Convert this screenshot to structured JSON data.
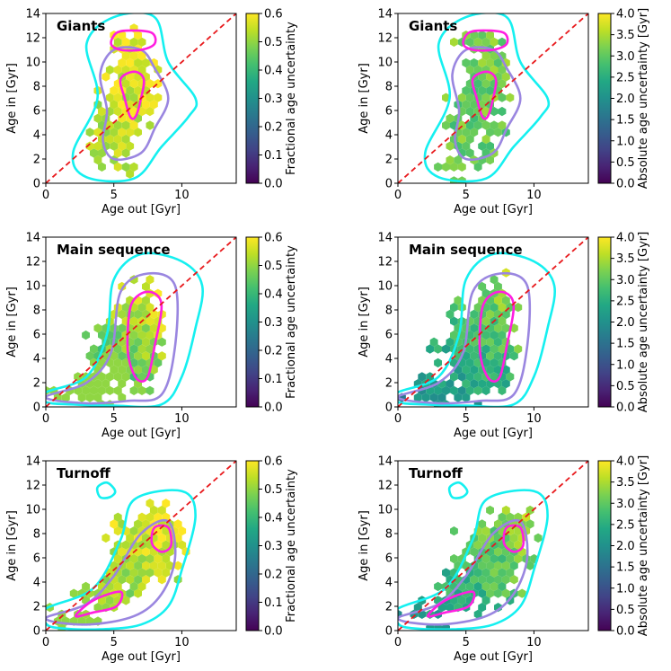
{
  "chart_data": {
    "type": "hexbin_grid",
    "x_label": "Age out [Gyr]",
    "y_label": "Age in [Gyr]",
    "xlim": [
      0,
      14
    ],
    "ylim": [
      0,
      14
    ],
    "x_ticks": [
      0,
      5,
      10
    ],
    "y_ticks": [
      0,
      2,
      4,
      6,
      8,
      10,
      12,
      14
    ],
    "one_to_one_line": {
      "color": "#e8191c",
      "style": "dashed"
    },
    "contour_colors": [
      "#15f0f0",
      "#9a86e0",
      "#ff1ee0"
    ],
    "colormap": "viridis",
    "colorbars": {
      "fractional": {
        "label": "Fractional age uncertainty",
        "range": [
          0.0,
          0.6
        ],
        "ticks": [
          "0.0",
          "0.1",
          "0.2",
          "0.3",
          "0.4",
          "0.5",
          "0.6"
        ]
      },
      "absolute": {
        "label": "Absolute age uncertainty [Gyr]",
        "range": [
          0.0,
          4.0
        ],
        "ticks": [
          "0.0",
          "0.5",
          "1.0",
          "1.5",
          "2.0",
          "2.5",
          "3.0",
          "3.5",
          "4.0"
        ]
      }
    },
    "panels": [
      {
        "row": 0,
        "col": 0,
        "title": "Giants",
        "metric": "fractional"
      },
      {
        "row": 0,
        "col": 1,
        "title": "Giants",
        "metric": "absolute"
      },
      {
        "row": 1,
        "col": 0,
        "title": "Main sequence",
        "metric": "fractional"
      },
      {
        "row": 1,
        "col": 1,
        "title": "Main sequence",
        "metric": "absolute"
      },
      {
        "row": 2,
        "col": 0,
        "title": "Turnoff",
        "metric": "fractional"
      },
      {
        "row": 2,
        "col": 1,
        "title": "Turnoff",
        "metric": "absolute"
      }
    ],
    "populations": {
      "Giants": {
        "density_centers": [
          [
            6.5,
            8.5,
            1.0,
            1.5,
            1.0
          ],
          [
            6.0,
            11.5,
            0.9,
            0.6,
            0.8
          ],
          [
            5.5,
            5.0,
            1.2,
            2.0,
            0.6
          ],
          [
            5.0,
            2.0,
            1.5,
            1.2,
            0.3
          ]
        ],
        "fractional_trend": [
          0.6,
          0.4
        ],
        "absolute_trend": [
          3.2,
          2.8
        ],
        "contours": [
          {
            "level": "outer",
            "points": [
              [
                5.0,
                13.7
              ],
              [
                3.0,
                11.5
              ],
              [
                3.8,
                7.0
              ],
              [
                2.0,
                2.5
              ],
              [
                3.0,
                0.5
              ],
              [
                6.5,
                0.4
              ],
              [
                8.5,
                3.0
              ],
              [
                10.5,
                5.5
              ],
              [
                11.0,
                7.0
              ],
              [
                9.0,
                10.0
              ],
              [
                8.0,
                13.7
              ]
            ]
          },
          {
            "level": "middle",
            "points": [
              [
                5.0,
                11.0
              ],
              [
                4.0,
                9.0
              ],
              [
                4.5,
                6.0
              ],
              [
                4.2,
                3.5
              ],
              [
                5.0,
                2.0
              ],
              [
                7.0,
                2.5
              ],
              [
                8.0,
                4.5
              ],
              [
                9.0,
                7.0
              ],
              [
                8.0,
                9.5
              ],
              [
                7.0,
                11.0
              ]
            ]
          },
          {
            "level": "inner",
            "points": [
              [
                5.5,
                8.6
              ],
              [
                5.8,
                7.0
              ],
              [
                6.2,
                5.5
              ],
              [
                6.6,
                5.5
              ],
              [
                7.0,
                7.0
              ],
              [
                7.2,
                8.6
              ],
              [
                6.5,
                9.2
              ]
            ]
          },
          {
            "level": "inner",
            "points": [
              [
                4.8,
                11.5
              ],
              [
                5.2,
                12.4
              ],
              [
                6.3,
                12.6
              ],
              [
                7.8,
                12.4
              ],
              [
                8.0,
                11.5
              ],
              [
                7.0,
                11.0
              ],
              [
                5.5,
                11.0
              ]
            ]
          }
        ]
      },
      "Main sequence": {
        "density_centers": [
          [
            7.0,
            7.0,
            1.0,
            2.0,
            1.0
          ],
          [
            6.5,
            3.5,
            1.0,
            1.5,
            0.7
          ],
          [
            3.0,
            1.2,
            1.5,
            0.8,
            0.6
          ],
          [
            5.0,
            5.0,
            1.5,
            2.0,
            0.5
          ]
        ],
        "fractional_trend": [
          0.6,
          0.2
        ],
        "absolute_trend": [
          3.5,
          0.8
        ],
        "contours": [
          {
            "level": "outer",
            "points": [
              [
                0.0,
                0.4
              ],
              [
                0.0,
                1.2
              ],
              [
                3.0,
                2.5
              ],
              [
                4.5,
                6.0
              ],
              [
                5.0,
                10.5
              ],
              [
                7.0,
                12.6
              ],
              [
                10.0,
                12.0
              ],
              [
                11.5,
                10.0
              ],
              [
                11.0,
                6.5
              ],
              [
                10.0,
                2.5
              ],
              [
                8.5,
                0.2
              ],
              [
                5.0,
                0.1
              ],
              [
                2.0,
                0.2
              ]
            ]
          },
          {
            "level": "middle",
            "points": [
              [
                0.0,
                0.8
              ],
              [
                3.0,
                2.0
              ],
              [
                4.8,
                4.5
              ],
              [
                5.5,
                9.5
              ],
              [
                7.5,
                11.0
              ],
              [
                9.5,
                10.0
              ],
              [
                9.5,
                5.0
              ],
              [
                8.5,
                1.0
              ],
              [
                6.0,
                0.5
              ],
              [
                3.0,
                0.3
              ]
            ]
          },
          {
            "level": "inner",
            "points": [
              [
                6.2,
                3.5
              ],
              [
                6.0,
                5.5
              ],
              [
                6.3,
                8.5
              ],
              [
                7.5,
                9.5
              ],
              [
                8.5,
                8.5
              ],
              [
                8.0,
                5.0
              ],
              [
                7.5,
                2.5
              ],
              [
                6.8,
                2.2
              ]
            ]
          }
        ]
      },
      "Turnoff": {
        "density_centers": [
          [
            7.0,
            6.5,
            1.5,
            2.0,
            1.0
          ],
          [
            4.5,
            3.0,
            1.2,
            1.0,
            0.7
          ],
          [
            8.5,
            8.0,
            0.8,
            1.2,
            0.6
          ],
          [
            2.0,
            1.0,
            1.2,
            0.8,
            0.5
          ]
        ],
        "fractional_trend": [
          0.6,
          0.35
        ],
        "absolute_trend": [
          3.5,
          1.2
        ],
        "contours": [
          {
            "level": "outer",
            "points": [
              [
                0.0,
                0.6
              ],
              [
                0.0,
                1.8
              ],
              [
                3.5,
                3.5
              ],
              [
                5.5,
                7.5
              ],
              [
                6.5,
                10.8
              ],
              [
                10.0,
                11.5
              ],
              [
                11.0,
                9.5
              ],
              [
                10.0,
                5.0
              ],
              [
                9.0,
                2.0
              ],
              [
                7.0,
                0.5
              ],
              [
                4.0,
                0.1
              ],
              [
                1.0,
                0.2
              ]
            ]
          },
          {
            "level": "outer",
            "points": [
              [
                4.0,
                11.0
              ],
              [
                3.8,
                11.8
              ],
              [
                4.5,
                12.2
              ],
              [
                5.1,
                11.5
              ],
              [
                4.7,
                11.0
              ]
            ]
          },
          {
            "level": "middle",
            "points": [
              [
                0.0,
                1.0
              ],
              [
                3.0,
                2.2
              ],
              [
                5.0,
                4.5
              ],
              [
                7.0,
                8.0
              ],
              [
                9.0,
                9.0
              ],
              [
                9.5,
                6.0
              ],
              [
                8.5,
                3.0
              ],
              [
                6.5,
                1.2
              ],
              [
                3.0,
                0.5
              ]
            ]
          },
          {
            "level": "inner",
            "points": [
              [
                2.2,
                1.2
              ],
              [
                3.5,
                2.5
              ],
              [
                5.5,
                3.2
              ],
              [
                5.2,
                2.0
              ],
              [
                3.5,
                1.5
              ]
            ]
          },
          {
            "level": "inner",
            "points": [
              [
                7.8,
                7.2
              ],
              [
                8.0,
                8.5
              ],
              [
                9.0,
                8.5
              ],
              [
                9.2,
                7.0
              ],
              [
                8.5,
                6.5
              ]
            ]
          }
        ]
      }
    }
  }
}
